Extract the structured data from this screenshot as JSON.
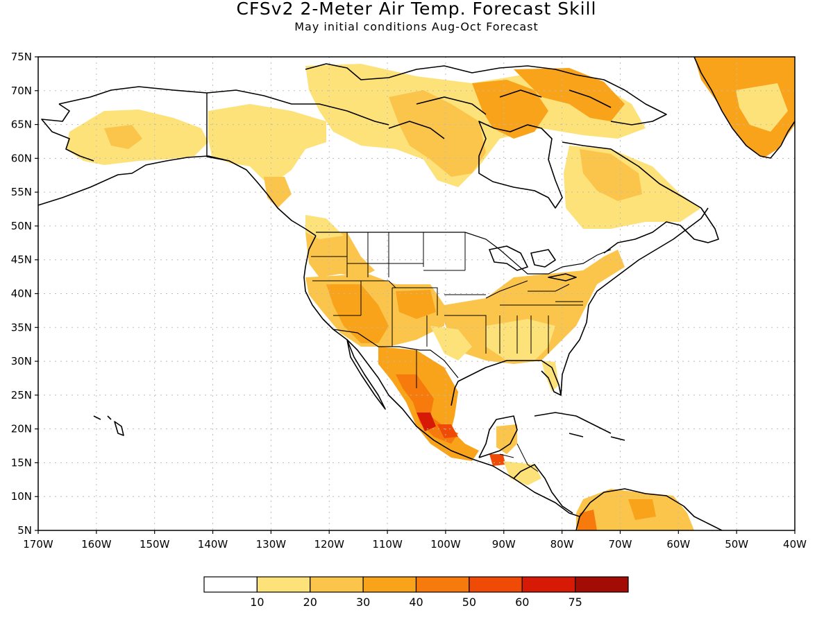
{
  "title": "CFSv2 2-Meter Air Temp. Forecast Skill",
  "subtitle": "May initial conditions   Aug-Oct Forecast",
  "lat_labels": [
    "75N",
    "70N",
    "65N",
    "60N",
    "55N",
    "50N",
    "45N",
    "40N",
    "35N",
    "30N",
    "25N",
    "20N",
    "15N",
    "10N",
    "5N"
  ],
  "lon_labels": [
    "170W",
    "160W",
    "150W",
    "140W",
    "130W",
    "120W",
    "110W",
    "100W",
    "90W",
    "80W",
    "70W",
    "60W",
    "50W",
    "40W"
  ],
  "colorbar": {
    "labels": [
      "10",
      "20",
      "30",
      "40",
      "50",
      "60",
      "75"
    ],
    "colors": [
      "#ffffff",
      "#fde27a",
      "#fbc44a",
      "#f9a31a",
      "#f67a0c",
      "#ef4a06",
      "#d71a05",
      "#a30c04"
    ]
  },
  "palette": {
    "land": "#ffffff",
    "coast": "#000000",
    "grid": "#bbbbbb",
    "skill_10_20": "#fde27a",
    "skill_20_30": "#fbc44a",
    "skill_30_40": "#f9a31a",
    "skill_40_50": "#f67a0c",
    "skill_50_60": "#ef4a06",
    "skill_60_75": "#d71a05"
  }
}
